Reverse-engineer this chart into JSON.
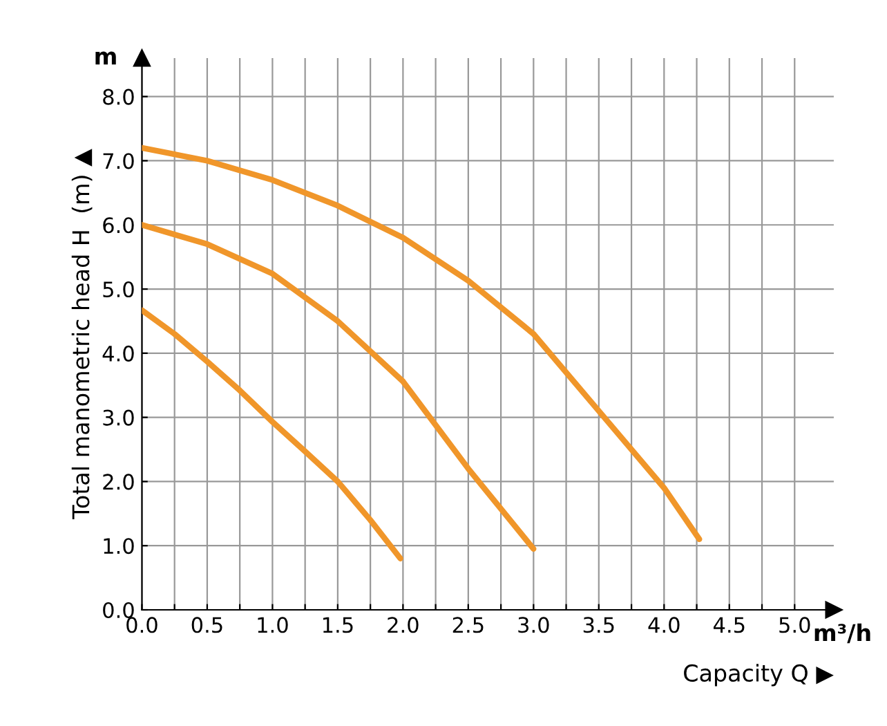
{
  "chart_data": {
    "type": "line",
    "xlabel": "Capacity Q ▶",
    "ylabel": "Total manometric head H  (m) ▲",
    "annotations": [
      "m",
      "m³/h"
    ],
    "series": [
      {
        "color": "#f0962a",
        "x": [
          0,
          0.25,
          0.5,
          0.75,
          1.0,
          1.25,
          1.5,
          1.75,
          1.98
        ],
        "values": [
          4.67,
          4.3,
          3.87,
          3.42,
          2.93,
          2.47,
          2.0,
          1.4,
          0.8
        ]
      },
      {
        "color": "#f0962a",
        "x": [
          0,
          0.5,
          1.0,
          1.5,
          2.0,
          2.5,
          3.0
        ],
        "values": [
          6.0,
          5.7,
          5.24,
          4.5,
          3.56,
          2.2,
          0.95
        ]
      },
      {
        "color": "#f0962a",
        "x": [
          0,
          0.5,
          1.0,
          1.5,
          2.0,
          2.5,
          3.0,
          3.5,
          4.0,
          4.27
        ],
        "values": [
          7.2,
          7.0,
          6.7,
          6.3,
          5.8,
          5.13,
          4.3,
          3.1,
          1.9,
          1.1
        ]
      }
    ],
    "xlim": [
      0,
      5.3
    ],
    "ylim": [
      0,
      8.6
    ],
    "xticks": [
      {
        "value": 0,
        "label": "0.0"
      },
      {
        "value": 0.25,
        "label": null
      },
      {
        "value": 0.5,
        "label": "0.5"
      },
      {
        "value": 0.75,
        "label": null
      },
      {
        "value": 1,
        "label": "1.0"
      },
      {
        "value": 1.25,
        "label": null
      },
      {
        "value": 1.5,
        "label": "1.5"
      },
      {
        "value": 1.75,
        "label": null
      },
      {
        "value": 2,
        "label": "2.0"
      },
      {
        "value": 2.25,
        "label": null
      },
      {
        "value": 2.5,
        "label": "2.5"
      },
      {
        "value": 2.75,
        "label": null
      },
      {
        "value": 3,
        "label": "3.0"
      },
      {
        "value": 3.25,
        "label": null
      },
      {
        "value": 3.5,
        "label": "3.5"
      },
      {
        "value": 3.75,
        "label": null
      },
      {
        "value": 4,
        "label": "4.0"
      },
      {
        "value": 4.25,
        "label": null
      },
      {
        "value": 4.5,
        "label": "4.5"
      },
      {
        "value": 4.75,
        "label": null
      },
      {
        "value": 5,
        "label": "5.0"
      }
    ],
    "yticks": [
      {
        "value": 0,
        "label": "0.0"
      },
      {
        "value": 1,
        "label": "1.0"
      },
      {
        "value": 2,
        "label": "2.0"
      },
      {
        "value": 3,
        "label": "3.0"
      },
      {
        "value": 4,
        "label": "4.0"
      },
      {
        "value": 5,
        "label": "5.0"
      },
      {
        "value": 6,
        "label": "6.0"
      },
      {
        "value": 7,
        "label": "7.0"
      },
      {
        "value": 8,
        "label": "8.0"
      }
    ],
    "grid": true,
    "marker": "none",
    "line_style": "solid"
  }
}
